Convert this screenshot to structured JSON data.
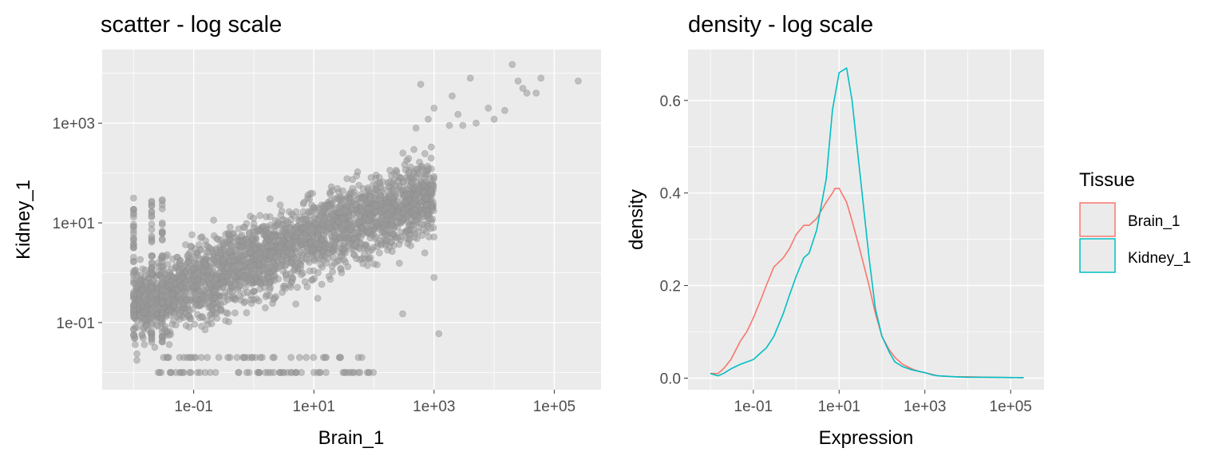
{
  "colors": {
    "panel_background": "#ebebeb",
    "grid_major": "#ffffff",
    "scatter_point": "#999999",
    "brain": "#f8766d",
    "kidney": "#00bfc4",
    "tick_text": "#4d4d4d"
  },
  "chart_data": [
    {
      "type": "scatter",
      "title": "scatter - log scale",
      "xlabel": "Brain_1",
      "ylabel": "Kidney_1",
      "xscale": "log10",
      "yscale": "log10",
      "xlim": [
        0.003,
        600000
      ],
      "ylim": [
        0.0045,
        30000
      ],
      "x_ticks": [
        0.1,
        10,
        1000,
        100000
      ],
      "x_tick_labels": [
        "1e-01",
        "1e+01",
        "1e+03",
        "1e+05"
      ],
      "y_ticks": [
        0.1,
        10,
        1000
      ],
      "y_tick_labels": [
        "1e-01",
        "1e+01",
        "1e+03"
      ],
      "grid": true,
      "legend": "none",
      "marker": "circle",
      "alpha": 0.6,
      "points_description": "dense cloud: genes with Brain_1 between 0.01 and 1000 and Kidney_1 between 0.01 and 1000, positively correlated",
      "outlier_points": [
        [
          20000,
          15000
        ],
        [
          60000,
          8000
        ],
        [
          250000,
          7000
        ],
        [
          4000,
          8000
        ],
        [
          25000,
          7000
        ],
        [
          35000,
          4000
        ],
        [
          50000,
          4000
        ],
        [
          30000,
          5000
        ],
        [
          2000,
          3500
        ],
        [
          1000,
          2000
        ],
        [
          600,
          6000
        ],
        [
          8000,
          2000
        ],
        [
          5000,
          1000
        ],
        [
          15000,
          1800
        ],
        [
          800,
          1200
        ],
        [
          500,
          800
        ],
        [
          1200,
          0.06
        ],
        [
          700,
          2.5
        ],
        [
          1000,
          0.8
        ],
        [
          300,
          0.15
        ],
        [
          100,
          1.5
        ],
        [
          3000,
          900
        ],
        [
          10000,
          1200
        ],
        [
          2500,
          1500
        ],
        [
          1800,
          900
        ]
      ]
    },
    {
      "type": "line",
      "title": "density - log scale",
      "xlabel": "Expression",
      "ylabel": "density",
      "xscale": "log10",
      "xlim": [
        0.003,
        600000
      ],
      "ylim": [
        -0.025,
        0.71
      ],
      "x_ticks": [
        0.1,
        10,
        1000,
        100000
      ],
      "x_tick_labels": [
        "1e-01",
        "1e+01",
        "1e+03",
        "1e+05"
      ],
      "y_ticks": [
        0,
        0.2,
        0.4,
        0.6
      ],
      "y_tick_labels": [
        "0.0",
        "0.2",
        "0.4",
        "0.6"
      ],
      "grid": true,
      "legend": "right",
      "legend_title": "Tissue",
      "series": [
        {
          "name": "Brain_1",
          "color": "#f8766d",
          "x": [
            0.01,
            0.015,
            0.02,
            0.03,
            0.05,
            0.07,
            0.1,
            0.15,
            0.2,
            0.3,
            0.5,
            0.7,
            1,
            1.5,
            2,
            3,
            5,
            7,
            8,
            10,
            15,
            20,
            30,
            50,
            70,
            100,
            150,
            200,
            300,
            500,
            700,
            1000,
            1500,
            2000,
            5000,
            10000,
            30000,
            200000
          ],
          "y": [
            0.01,
            0.01,
            0.02,
            0.04,
            0.08,
            0.1,
            0.13,
            0.17,
            0.2,
            0.24,
            0.26,
            0.28,
            0.31,
            0.33,
            0.33,
            0.345,
            0.38,
            0.4,
            0.41,
            0.41,
            0.38,
            0.34,
            0.28,
            0.2,
            0.14,
            0.09,
            0.06,
            0.045,
            0.03,
            0.02,
            0.015,
            0.012,
            0.008,
            0.005,
            0.003,
            0.003,
            0.002,
            0.001
          ]
        },
        {
          "name": "Kidney_1",
          "color": "#00bfc4",
          "x": [
            0.01,
            0.015,
            0.02,
            0.03,
            0.05,
            0.07,
            0.1,
            0.15,
            0.2,
            0.3,
            0.5,
            0.7,
            1,
            1.5,
            2,
            3,
            5,
            7,
            10,
            15,
            20,
            30,
            50,
            70,
            100,
            150,
            200,
            300,
            500,
            700,
            1000,
            1500,
            2000,
            5000,
            10000,
            30000,
            200000
          ],
          "y": [
            0.01,
            0.005,
            0.01,
            0.02,
            0.03,
            0.035,
            0.04,
            0.055,
            0.065,
            0.09,
            0.14,
            0.18,
            0.22,
            0.26,
            0.27,
            0.32,
            0.43,
            0.58,
            0.66,
            0.67,
            0.6,
            0.45,
            0.26,
            0.15,
            0.09,
            0.055,
            0.035,
            0.025,
            0.018,
            0.015,
            0.012,
            0.007,
            0.005,
            0.003,
            0.002,
            0.002,
            0.001
          ]
        }
      ]
    }
  ]
}
